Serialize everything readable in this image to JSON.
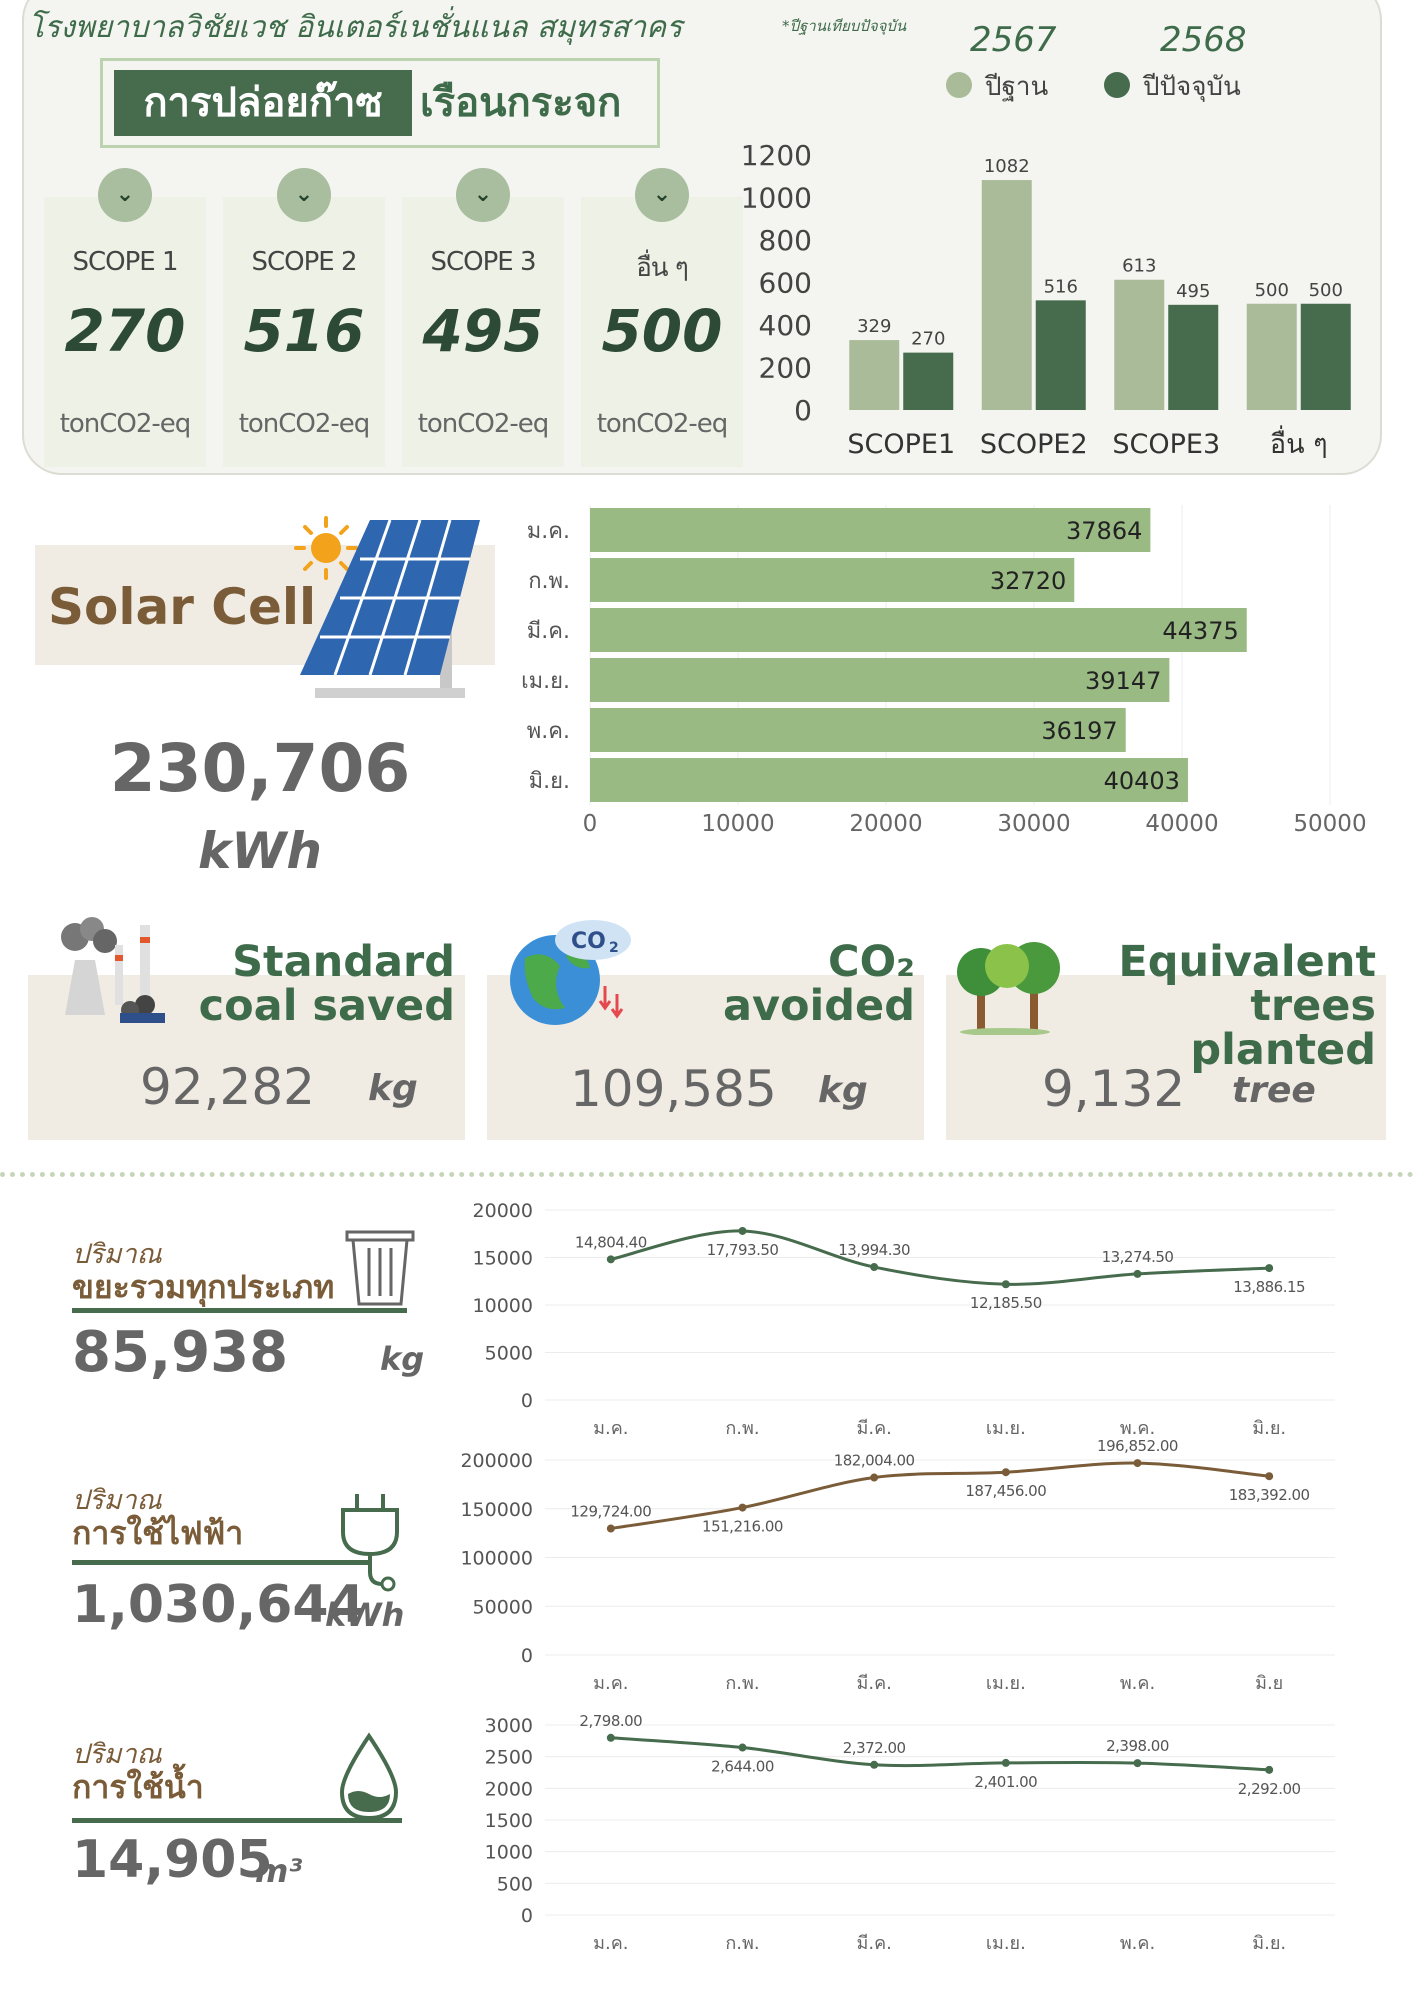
{
  "header": {
    "hospital": "โรงพยาบาลวิชัยเวช อินเตอร์เนชั่นแนล สมุทรสาคร",
    "baseline_note": "*ปีฐานเทียบปัจจุบัน",
    "title_dark": "การปล่อยก๊าซ",
    "title_light": "เรือนกระจก"
  },
  "legend": {
    "year_base": "2567",
    "year_current": "2568",
    "label_base": "ปีฐาน",
    "label_current": "ปีปัจจุบัน",
    "color_base": "#a9bb99",
    "color_current": "#466b4d"
  },
  "scope_cards": [
    {
      "name": "SCOPE 1",
      "value": "270",
      "unit": "tonCO2-eq"
    },
    {
      "name": "SCOPE 2",
      "value": "516",
      "unit": "tonCO2-eq"
    },
    {
      "name": "SCOPE 3",
      "value": "495",
      "unit": "tonCO2-eq"
    },
    {
      "name": "อื่น ๆ",
      "value": "500",
      "unit": "tonCO2-eq"
    }
  ],
  "solar": {
    "title": "Solar Cell",
    "total": "230,706",
    "unit": "kWh"
  },
  "equivalents": [
    {
      "title_line1": "Standard",
      "title_line2": "coal saved",
      "value": "92,282",
      "unit": "kg"
    },
    {
      "title_line1": "CO₂",
      "title_line2": "avoided",
      "value": "109,585",
      "unit": "kg"
    },
    {
      "title_line1": "Equivalent",
      "title_line2": "trees planted",
      "value": "9,132",
      "unit": "tree"
    }
  ],
  "icons": {
    "scope_chevron": "chevron-down-icon",
    "solar": "solar-panel-icon",
    "coal": "coal-factory-icon",
    "co2": "co2-globe-icon",
    "trees": "trees-icon",
    "waste": "trash-bin-icon",
    "electric": "plug-icon",
    "water": "water-drop-icon"
  },
  "sections": {
    "waste": {
      "small": "ปริมาณ",
      "big": "ขยะรวมทุกประเภท",
      "value": "85,938",
      "unit": "kg"
    },
    "electric": {
      "small": "ปริมาณ",
      "big": "การใช้ไฟฟ้า",
      "value": "1,030,644",
      "unit": "kWh"
    },
    "water": {
      "small": "ปริมาณ",
      "big": "การใช้น้ำ",
      "value": "14,905",
      "unit": "m³"
    }
  },
  "chart_data": [
    {
      "id": "ghg",
      "type": "bar",
      "categories": [
        "SCOPE1",
        "SCOPE2",
        "SCOPE3",
        "อื่น ๆ"
      ],
      "series": [
        {
          "name": "ปีฐาน",
          "values": [
            329,
            1082,
            613,
            500
          ],
          "color": "#a9bb99"
        },
        {
          "name": "ปีปัจจุบัน",
          "values": [
            270,
            516,
            495,
            500
          ],
          "color": "#466b4d"
        }
      ],
      "ylim": [
        0,
        1200
      ],
      "yticks": [
        0,
        200,
        400,
        600,
        800,
        1000,
        1200
      ],
      "grid": false
    },
    {
      "id": "solar",
      "type": "bar",
      "orientation": "horizontal",
      "categories": [
        "ม.ค.",
        "ก.พ.",
        "มี.ค.",
        "เม.ย.",
        "พ.ค.",
        "มิ.ย."
      ],
      "values": [
        37864,
        32720,
        44375,
        39147,
        36197,
        40403
      ],
      "xlim": [
        0,
        50000
      ],
      "xticks": [
        0,
        10000,
        20000,
        30000,
        40000,
        50000
      ],
      "color": "#9aba84",
      "grid": true
    },
    {
      "id": "waste",
      "type": "line",
      "categories": [
        "ม.ค.",
        "ก.พ.",
        "มี.ค.",
        "เม.ย.",
        "พ.ค.",
        "มิ.ย."
      ],
      "values": [
        14804.4,
        17793.5,
        13994.3,
        12185.5,
        13274.5,
        13886.15
      ],
      "labels": [
        "14,804.40",
        "17,793.50",
        "13,994.30",
        "12,185.50",
        "13,274.50",
        "13,886.15"
      ],
      "ylim": [
        0,
        20000
      ],
      "yticks": [
        0,
        5000,
        10000,
        15000,
        20000
      ],
      "color": "#466b4d",
      "grid": true
    },
    {
      "id": "electric",
      "type": "line",
      "categories": [
        "ม.ค.",
        "ก.พ.",
        "มี.ค.",
        "เม.ย.",
        "พ.ค.",
        "มิ.ย"
      ],
      "values": [
        129724,
        151216,
        182004,
        187456,
        196852,
        183392
      ],
      "labels": [
        "129,724.00",
        "151,216.00",
        "182,004.00",
        "187,456.00",
        "196,852.00",
        "183,392.00"
      ],
      "ylim": [
        0,
        200000
      ],
      "yticks": [
        0,
        50000,
        100000,
        150000,
        200000
      ],
      "color": "#7a5c38",
      "grid": true
    },
    {
      "id": "water",
      "type": "line",
      "categories": [
        "ม.ค.",
        "ก.พ.",
        "มี.ค.",
        "เม.ย.",
        "พ.ค.",
        "มิ.ย."
      ],
      "values": [
        2798,
        2644,
        2372,
        2401,
        2398,
        2292
      ],
      "labels": [
        "2,798.00",
        "2,644.00",
        "2,372.00",
        "2,401.00",
        "2,398.00",
        "2,292.00"
      ],
      "ylim": [
        0,
        3000
      ],
      "yticks": [
        0,
        500,
        1000,
        1500,
        2000,
        2500,
        3000
      ],
      "color": "#466b4d",
      "grid": true
    }
  ]
}
